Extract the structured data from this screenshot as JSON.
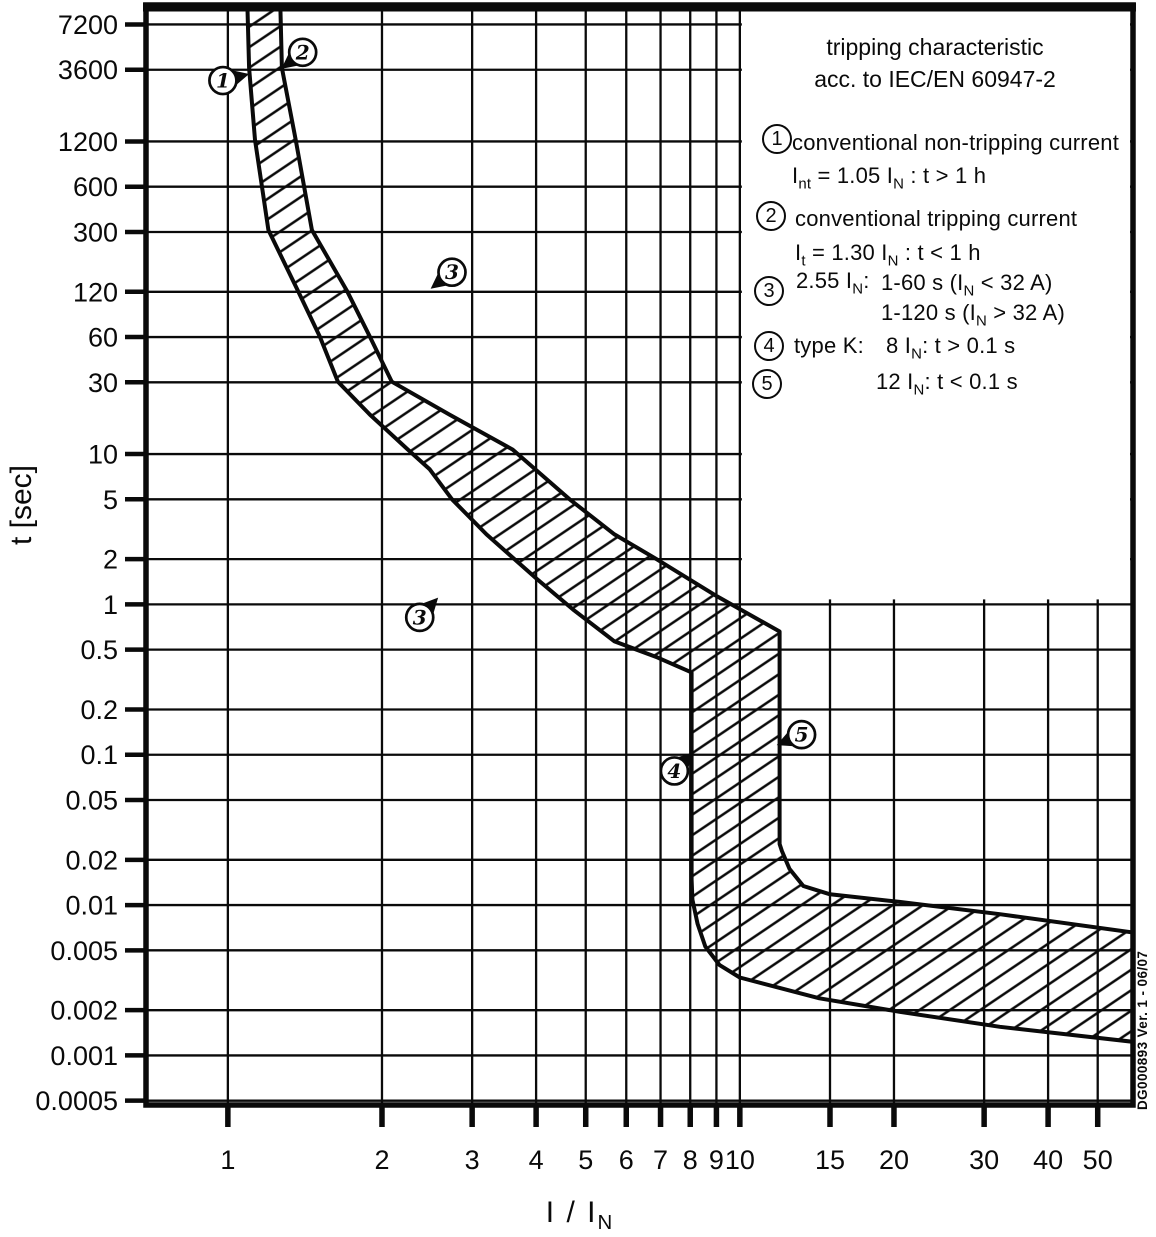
{
  "colors": {
    "ink": "#0a0a0a",
    "background": "#ffffff"
  },
  "watermark": "DG000893 Ver. 1 - 06/07",
  "chart_data": {
    "type": "area",
    "title": "tripping characteristic acc. to IEC/EN 60947-2",
    "xlabel": "I / I~N~",
    "ylabel": "t [sec]",
    "x_scale": "log",
    "y_scale": "log",
    "x_domain": [
      0.692,
      58.6
    ],
    "y_domain": [
      0.000468,
      9700
    ],
    "grid": "on",
    "legend_position": "top-right",
    "x_ticks": [
      {
        "v": 1,
        "label": "1"
      },
      {
        "v": 2,
        "label": "2"
      },
      {
        "v": 3,
        "label": "3"
      },
      {
        "v": 4,
        "label": "4"
      },
      {
        "v": 5,
        "label": "5"
      },
      {
        "v": 6,
        "label": "6"
      },
      {
        "v": 7,
        "label": "7"
      },
      {
        "v": 8,
        "label": "8"
      },
      {
        "v": 9,
        "label": "9"
      },
      {
        "v": 10,
        "label": "10"
      },
      {
        "v": 15,
        "label": "15"
      },
      {
        "v": 20,
        "label": "20"
      },
      {
        "v": 30,
        "label": "30"
      },
      {
        "v": 40,
        "label": "40"
      },
      {
        "v": 50,
        "label": "50"
      }
    ],
    "y_ticks": [
      {
        "v": 7200,
        "label": "7200"
      },
      {
        "v": 3600,
        "label": "3600"
      },
      {
        "v": 1200,
        "label": "1200"
      },
      {
        "v": 600,
        "label": "600"
      },
      {
        "v": 300,
        "label": "300"
      },
      {
        "v": 120,
        "label": "120"
      },
      {
        "v": 60,
        "label": "60"
      },
      {
        "v": 30,
        "label": "30"
      },
      {
        "v": 10,
        "label": "10"
      },
      {
        "v": 5,
        "label": "5"
      },
      {
        "v": 2,
        "label": "2"
      },
      {
        "v": 1,
        "label": "1"
      },
      {
        "v": 0.5,
        "label": "0.5"
      },
      {
        "v": 0.2,
        "label": "0.2"
      },
      {
        "v": 0.1,
        "label": "0.1"
      },
      {
        "v": 0.05,
        "label": "0.05"
      },
      {
        "v": 0.02,
        "label": "0.02"
      },
      {
        "v": 0.01,
        "label": "0.01"
      },
      {
        "v": 0.005,
        "label": "0.005"
      },
      {
        "v": 0.002,
        "label": "0.002"
      },
      {
        "v": 0.001,
        "label": "0.001"
      },
      {
        "v": 0.0005,
        "label": "0.0005"
      }
    ],
    "band": {
      "description": "hatched tolerance band of the type-K tripping characteristic (current multiple I/IN vs. time s)",
      "lower": [
        [
          1.088,
          15000
        ],
        [
          1.1,
          3700
        ],
        [
          1.13,
          1230
        ],
        [
          1.2,
          309
        ],
        [
          1.37,
          122
        ],
        [
          1.513,
          60.3
        ],
        [
          1.64,
          30.3
        ],
        [
          1.894,
          18.3
        ],
        [
          2.247,
          10.7
        ],
        [
          2.48,
          7.9
        ],
        [
          2.74,
          5.0
        ],
        [
          3.2,
          2.92
        ],
        [
          4.02,
          1.47
        ],
        [
          4.72,
          0.926
        ],
        [
          5.69,
          0.567
        ],
        [
          6.9,
          0.444
        ],
        [
          8.05,
          0.353
        ],
        [
          8.05,
          0.0148
        ],
        [
          8.08,
          0.0109
        ],
        [
          8.27,
          0.0075
        ],
        [
          8.56,
          0.0053
        ],
        [
          9.12,
          0.004
        ],
        [
          10.0,
          0.0033
        ],
        [
          14.3,
          0.0024
        ],
        [
          20.5,
          0.00195
        ],
        [
          32.2,
          0.00155
        ],
        [
          60.0,
          0.00122
        ]
      ],
      "upper": [
        [
          1.262,
          15000
        ],
        [
          1.275,
          3700
        ],
        [
          1.357,
          1230
        ],
        [
          1.459,
          309
        ],
        [
          1.708,
          122
        ],
        [
          1.894,
          60.3
        ],
        [
          2.09,
          30.3
        ],
        [
          2.71,
          18.3
        ],
        [
          3.6,
          10.7
        ],
        [
          4.65,
          5.0
        ],
        [
          5.69,
          2.92
        ],
        [
          6.87,
          2.0
        ],
        [
          9.03,
          1.13
        ],
        [
          11.96,
          0.66
        ],
        [
          11.96,
          0.0255
        ],
        [
          12.08,
          0.0229
        ],
        [
          12.5,
          0.0174
        ],
        [
          13.3,
          0.0134
        ],
        [
          15.0,
          0.0118
        ],
        [
          20.5,
          0.0105
        ],
        [
          32.2,
          0.0087
        ],
        [
          60.0,
          0.0065
        ]
      ]
    },
    "markers": [
      {
        "n": "1",
        "i": 0.978,
        "t": 3050,
        "dir": [
          1,
          -0.25
        ]
      },
      {
        "n": "2",
        "i": 1.4,
        "t": 4700,
        "dir": [
          -0.8,
          0.62
        ]
      },
      {
        "n": "3",
        "i": 2.74,
        "t": 162,
        "dir": [
          -0.8,
          0.62
        ]
      },
      {
        "n": "3",
        "i": 2.37,
        "t": 0.82,
        "dir": [
          0.7,
          -0.75
        ]
      },
      {
        "n": "4",
        "i": 7.45,
        "t": 0.078,
        "dir": [
          0.72,
          -0.7
        ]
      },
      {
        "n": "5",
        "i": 13.2,
        "t": 0.136,
        "dir": [
          -1,
          0.42
        ]
      }
    ],
    "legend": {
      "title1": "tripping characteristic",
      "title2": "acc. to IEC/EN 60947-2",
      "item1": {
        "num": "1",
        "line1": "conventional non-tripping current",
        "line2": "I~nt~ = 1.05 I~N~ : t > 1 h"
      },
      "item2": {
        "num": "2",
        "line1": "conventional tripping current",
        "line2": "I~t~ = 1.30 I~N~ : t < 1 h"
      },
      "item3": {
        "num": "3",
        "col1": "2.55 I~N~:",
        "line1": "1-60 s (I~N~ < 32 A)",
        "line2": "1-120 s (I~N~ > 32 A)"
      },
      "item4": {
        "num": "4",
        "col1": "type K:",
        "line1": "8 I~N~: t > 0.1 s"
      },
      "item5": {
        "num": "5",
        "line1": "12 I~N~: t < 0.1 s"
      }
    }
  }
}
